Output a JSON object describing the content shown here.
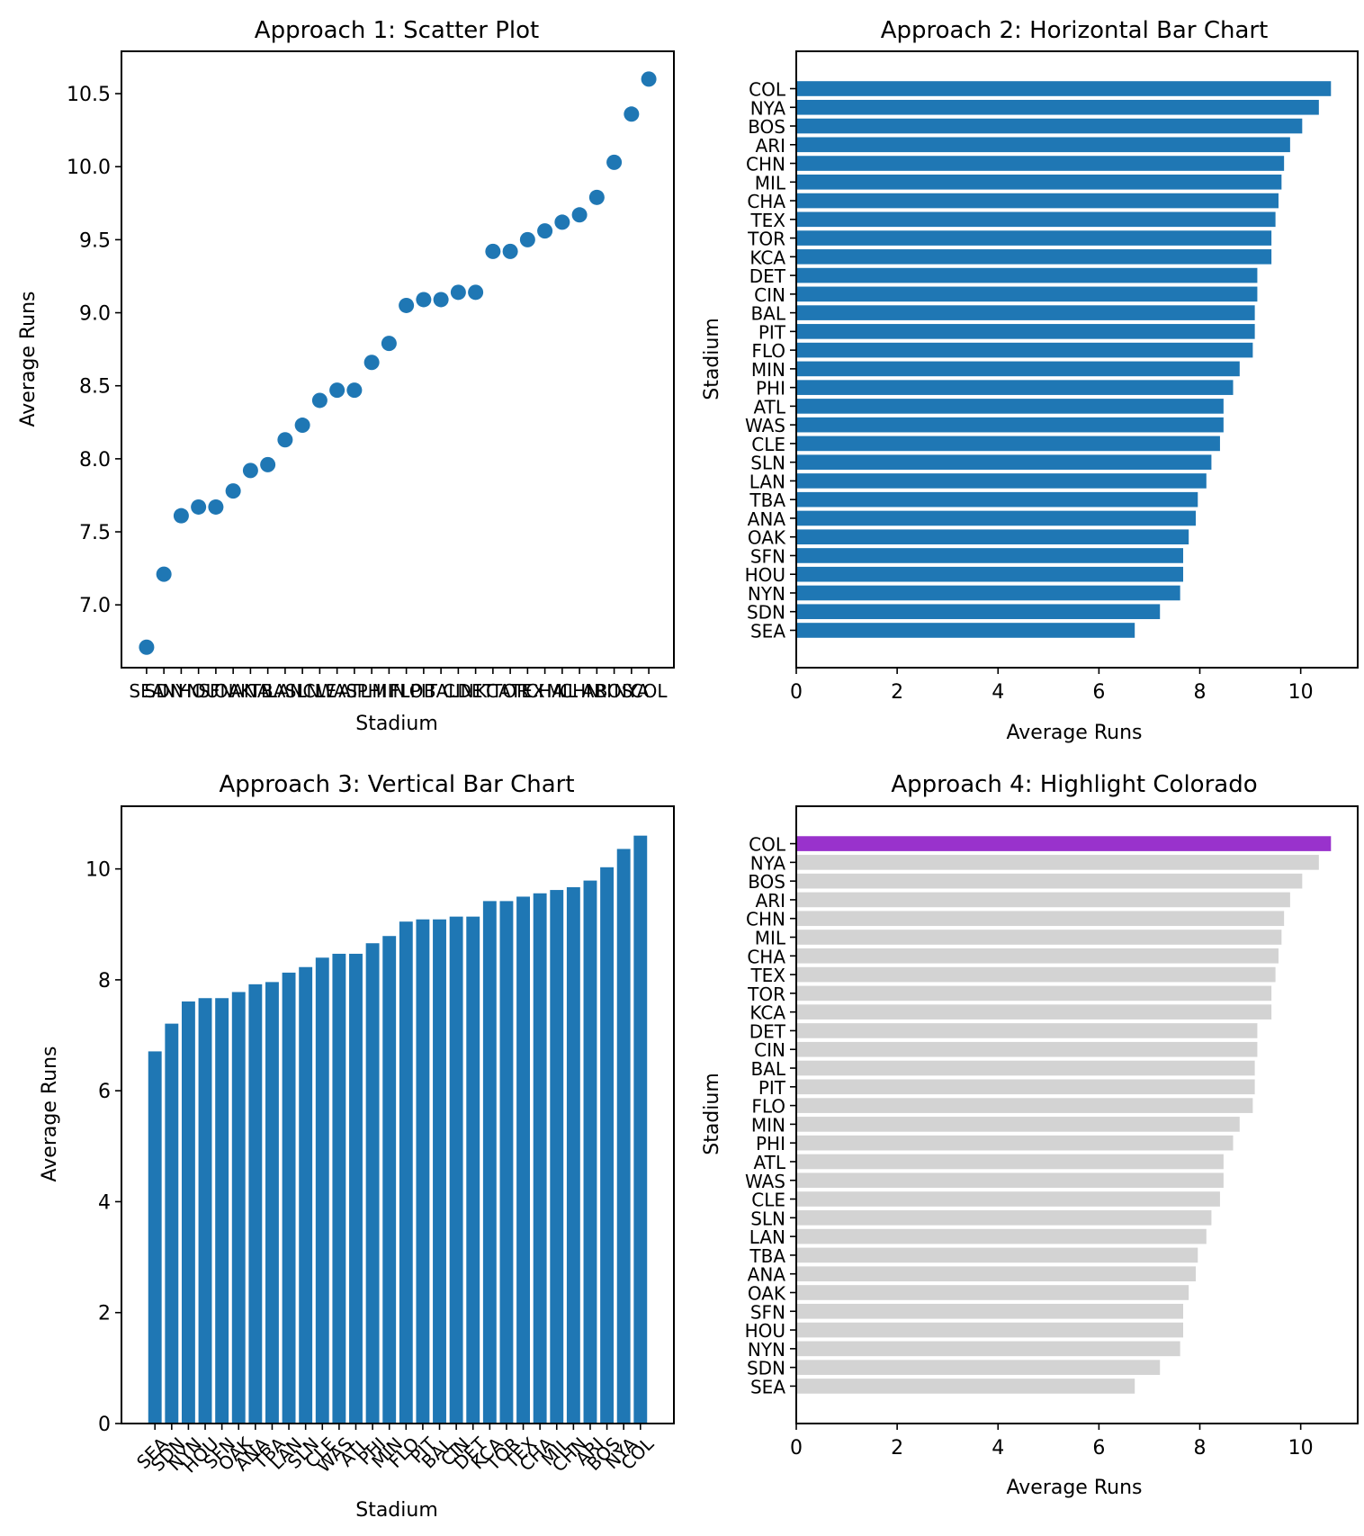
{
  "figure": {
    "panels": [
      "scatter",
      "hbar",
      "vbar",
      "highlight"
    ]
  },
  "chart_data": [
    {
      "id": "scatter",
      "type": "scatter",
      "title": "Approach 1: Scatter Plot",
      "xlabel": "Stadium",
      "ylabel": "Average Runs",
      "categories": [
        "SEA",
        "SDN",
        "NYN",
        "HOU",
        "SFN",
        "OAK",
        "ANA",
        "TBA",
        "LAN",
        "SLN",
        "CLE",
        "WAS",
        "ATL",
        "PHI",
        "MIN",
        "FLO",
        "PIT",
        "BAL",
        "CIN",
        "DET",
        "KCA",
        "TOR",
        "TEX",
        "CHA",
        "MIL",
        "CHN",
        "ARI",
        "BOS",
        "NYA",
        "COL"
      ],
      "values": [
        6.71,
        7.21,
        7.61,
        7.67,
        7.67,
        7.78,
        7.92,
        7.96,
        8.13,
        8.23,
        8.4,
        8.47,
        8.47,
        8.66,
        8.79,
        9.05,
        9.09,
        9.09,
        9.14,
        9.14,
        9.42,
        9.42,
        9.5,
        9.56,
        9.62,
        9.67,
        9.79,
        10.03,
        10.36,
        10.6
      ],
      "ylim": [
        6.57,
        10.79
      ],
      "yticks": [
        7.0,
        7.5,
        8.0,
        8.5,
        9.0,
        9.5,
        10.0,
        10.5
      ],
      "ytick_labels": [
        "7.0",
        "7.5",
        "8.0",
        "8.5",
        "9.0",
        "9.5",
        "10.0",
        "10.5"
      ],
      "color": "#1f77b4",
      "grid": false
    },
    {
      "id": "hbar",
      "type": "bar",
      "orientation": "horizontal",
      "title": "Approach 2: Horizontal Bar Chart",
      "xlabel": "Average Runs",
      "ylabel": "Stadium",
      "categories": [
        "SEA",
        "SDN",
        "NYN",
        "HOU",
        "SFN",
        "OAK",
        "ANA",
        "TBA",
        "LAN",
        "SLN",
        "CLE",
        "WAS",
        "ATL",
        "PHI",
        "MIN",
        "FLO",
        "PIT",
        "BAL",
        "CIN",
        "DET",
        "KCA",
        "TOR",
        "TEX",
        "CHA",
        "MIL",
        "CHN",
        "ARI",
        "BOS",
        "NYA",
        "COL"
      ],
      "values": [
        6.71,
        7.21,
        7.61,
        7.67,
        7.67,
        7.78,
        7.92,
        7.96,
        8.13,
        8.23,
        8.4,
        8.47,
        8.47,
        8.66,
        8.79,
        9.05,
        9.09,
        9.09,
        9.14,
        9.14,
        9.42,
        9.42,
        9.5,
        9.56,
        9.62,
        9.67,
        9.79,
        10.03,
        10.36,
        10.6
      ],
      "xlim": [
        0,
        11.13
      ],
      "xticks": [
        0,
        2,
        4,
        6,
        8,
        10
      ],
      "xtick_labels": [
        "0",
        "2",
        "4",
        "6",
        "8",
        "10"
      ],
      "color": "#1f77b4",
      "grid": false
    },
    {
      "id": "vbar",
      "type": "bar",
      "orientation": "vertical",
      "title": "Approach 3: Vertical Bar Chart",
      "xlabel": "Stadium",
      "ylabel": "Average Runs",
      "categories": [
        "SEA",
        "SDN",
        "NYN",
        "HOU",
        "SFN",
        "OAK",
        "ANA",
        "TBA",
        "LAN",
        "SLN",
        "CLE",
        "WAS",
        "ATL",
        "PHI",
        "MIN",
        "FLO",
        "PIT",
        "BAL",
        "CIN",
        "DET",
        "KCA",
        "TOR",
        "TEX",
        "CHA",
        "MIL",
        "CHN",
        "ARI",
        "BOS",
        "NYA",
        "COL"
      ],
      "values": [
        6.71,
        7.21,
        7.61,
        7.67,
        7.67,
        7.78,
        7.92,
        7.96,
        8.13,
        8.23,
        8.4,
        8.47,
        8.47,
        8.66,
        8.79,
        9.05,
        9.09,
        9.09,
        9.14,
        9.14,
        9.42,
        9.42,
        9.5,
        9.56,
        9.62,
        9.67,
        9.79,
        10.03,
        10.36,
        10.6
      ],
      "ylim": [
        0,
        11.13
      ],
      "yticks": [
        0,
        2,
        4,
        6,
        8,
        10
      ],
      "ytick_labels": [
        "0",
        "2",
        "4",
        "6",
        "8",
        "10"
      ],
      "xtick_rotation": 45,
      "color": "#1f77b4",
      "grid": false
    },
    {
      "id": "highlight",
      "type": "bar",
      "orientation": "horizontal",
      "title": "Approach 4: Highlight Colorado",
      "xlabel": "Average Runs",
      "ylabel": "Stadium",
      "categories": [
        "SEA",
        "SDN",
        "NYN",
        "HOU",
        "SFN",
        "OAK",
        "ANA",
        "TBA",
        "LAN",
        "SLN",
        "CLE",
        "WAS",
        "ATL",
        "PHI",
        "MIN",
        "FLO",
        "PIT",
        "BAL",
        "CIN",
        "DET",
        "KCA",
        "TOR",
        "TEX",
        "CHA",
        "MIL",
        "CHN",
        "ARI",
        "BOS",
        "NYA",
        "COL"
      ],
      "values": [
        6.71,
        7.21,
        7.61,
        7.67,
        7.67,
        7.78,
        7.92,
        7.96,
        8.13,
        8.23,
        8.4,
        8.47,
        8.47,
        8.66,
        8.79,
        9.05,
        9.09,
        9.09,
        9.14,
        9.14,
        9.42,
        9.42,
        9.5,
        9.56,
        9.62,
        9.67,
        9.79,
        10.03,
        10.36,
        10.6
      ],
      "xlim": [
        0,
        11.13
      ],
      "xticks": [
        0,
        2,
        4,
        6,
        8,
        10
      ],
      "xtick_labels": [
        "0",
        "2",
        "4",
        "6",
        "8",
        "10"
      ],
      "highlight": "COL",
      "color": "#d3d3d3",
      "highlight_color": "#9932cc",
      "grid": false
    }
  ]
}
